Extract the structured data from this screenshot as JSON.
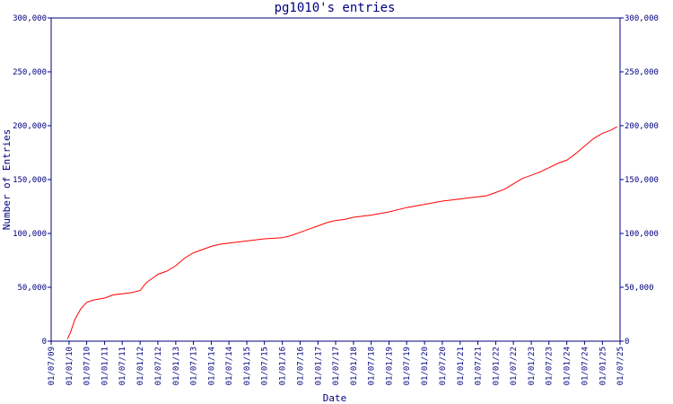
{
  "chart_data": {
    "type": "line",
    "title": "pg1010's entries",
    "xlabel": "Date",
    "ylabel": "Number of Entries",
    "ylim": [
      0,
      300000
    ],
    "yticks": [
      0,
      50000,
      100000,
      150000,
      200000,
      250000,
      300000
    ],
    "ytick_labels": [
      "0",
      "50,000",
      "100,000",
      "150,000",
      "200,000",
      "250,000",
      "300,000"
    ],
    "ytick_labels_right": [
      "0",
      "50,000",
      "100,000",
      "150,000",
      "200,000",
      "250,000",
      "300,000"
    ],
    "xlim": [
      "2009-07-01",
      "2025-07-01"
    ],
    "xtick_labels": [
      "01/07/09",
      "01/01/10",
      "01/07/10",
      "01/01/11",
      "01/07/11",
      "01/01/12",
      "01/07/12",
      "01/01/13",
      "01/07/13",
      "01/01/14",
      "01/07/14",
      "01/01/15",
      "01/07/15",
      "01/01/16",
      "01/07/16",
      "01/01/17",
      "01/07/17",
      "01/01/18",
      "01/07/18",
      "01/01/19",
      "01/07/19",
      "01/01/20",
      "01/07/20",
      "01/01/21",
      "01/07/21",
      "01/01/22",
      "01/07/22",
      "01/01/23",
      "01/07/23",
      "01/01/24",
      "01/07/24",
      "01/01/25",
      "01/07/25"
    ],
    "grid": false,
    "line_color": "#ff0000",
    "axis_color": "#000080",
    "series": [
      {
        "x": [
          "2009-12-15",
          "2010-01-15",
          "2010-03-01",
          "2010-05-01",
          "2010-07-01",
          "2010-09-01",
          "2011-01-01",
          "2011-04-01",
          "2011-07-01",
          "2011-10-01",
          "2012-01-01",
          "2012-03-01",
          "2012-05-01",
          "2012-07-01",
          "2012-10-01",
          "2013-01-01",
          "2013-04-01",
          "2013-07-01",
          "2013-10-01",
          "2014-01-01",
          "2014-04-01",
          "2014-07-01",
          "2015-01-01",
          "2015-07-01",
          "2016-01-01",
          "2016-04-01",
          "2016-07-01",
          "2016-10-01",
          "2017-01-01",
          "2017-04-01",
          "2017-07-01",
          "2017-10-01",
          "2018-01-01",
          "2018-07-01",
          "2019-01-01",
          "2019-07-01",
          "2020-01-01",
          "2020-07-01",
          "2021-01-01",
          "2021-04-01",
          "2021-07-01",
          "2021-10-01",
          "2022-01-01",
          "2022-04-01",
          "2022-07-01",
          "2022-10-01",
          "2023-01-01",
          "2023-04-01",
          "2023-07-01",
          "2023-10-01",
          "2024-01-01",
          "2024-04-01",
          "2024-07-01",
          "2024-10-01",
          "2025-01-01",
          "2025-04-01",
          "2025-06-01"
        ],
        "y": [
          2000,
          8000,
          20000,
          30000,
          36000,
          38000,
          40000,
          43000,
          44000,
          45000,
          47000,
          54000,
          58000,
          62000,
          65000,
          70000,
          77000,
          82000,
          85000,
          88000,
          90000,
          91000,
          93000,
          95000,
          96000,
          98000,
          101000,
          104000,
          107000,
          110000,
          112000,
          113000,
          115000,
          117000,
          120000,
          124000,
          127000,
          130000,
          132000,
          133000,
          134000,
          135000,
          138000,
          141000,
          146000,
          151000,
          154000,
          157000,
          161000,
          165000,
          168000,
          174000,
          181000,
          188000,
          193000,
          196000,
          199000
        ]
      }
    ]
  }
}
